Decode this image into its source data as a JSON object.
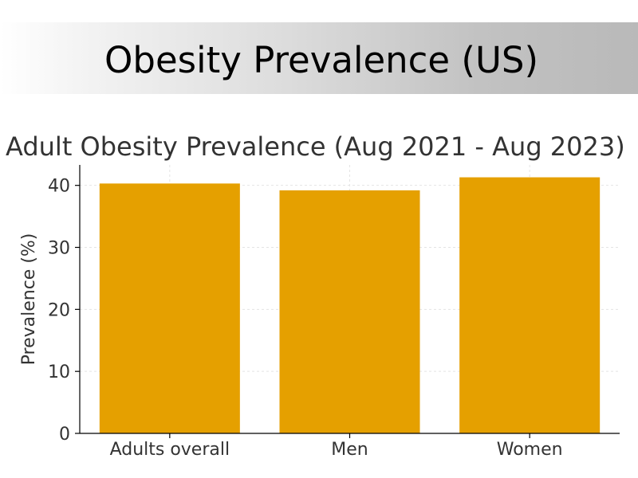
{
  "banner": {
    "title": "Obesity Prevalence (US)"
  },
  "colors": {
    "bar": "#e5a000",
    "axis": "#000000",
    "grid": "#e4e4e4",
    "text": "#333333"
  },
  "chart_data": {
    "type": "bar",
    "title": "Adult Obesity Prevalence (Aug 2021 - Aug 2023)",
    "xlabel": "",
    "ylabel": "Prevalence (%)",
    "categories": [
      "Adults overall",
      "Men",
      "Women"
    ],
    "values": [
      40.3,
      39.2,
      41.3
    ],
    "ylim": [
      0,
      43.3
    ],
    "yticks": [
      0,
      10,
      20,
      30,
      40
    ],
    "grid": true
  }
}
